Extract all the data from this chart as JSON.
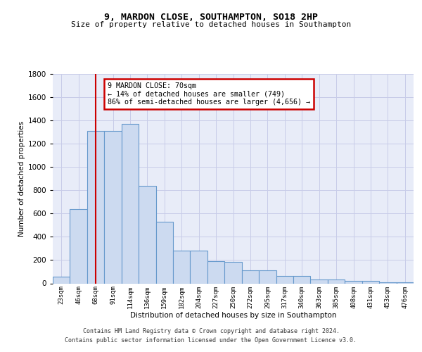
{
  "title1": "9, MARDON CLOSE, SOUTHAMPTON, SO18 2HP",
  "title2": "Size of property relative to detached houses in Southampton",
  "xlabel": "Distribution of detached houses by size in Southampton",
  "ylabel": "Number of detached properties",
  "categories": [
    "23sqm",
    "46sqm",
    "68sqm",
    "91sqm",
    "114sqm",
    "136sqm",
    "159sqm",
    "182sqm",
    "204sqm",
    "227sqm",
    "250sqm",
    "272sqm",
    "295sqm",
    "317sqm",
    "340sqm",
    "363sqm",
    "385sqm",
    "408sqm",
    "431sqm",
    "453sqm",
    "476sqm"
  ],
  "values": [
    55,
    640,
    1310,
    1310,
    1370,
    840,
    530,
    280,
    280,
    190,
    185,
    110,
    110,
    65,
    65,
    35,
    35,
    20,
    20,
    10,
    10
  ],
  "bar_color": "#ccdaf0",
  "bar_edge_color": "#6699cc",
  "grid_color": "#c8cce8",
  "bg_color": "#e8ecf8",
  "red_line_x": 2,
  "annotation_text": "9 MARDON CLOSE: 70sqm\n← 14% of detached houses are smaller (749)\n86% of semi-detached houses are larger (4,656) →",
  "annotation_box_color": "#ffffff",
  "annotation_box_edge": "#cc0000",
  "footer": "Contains HM Land Registry data © Crown copyright and database right 2024.\nContains public sector information licensed under the Open Government Licence v3.0.",
  "ylim": [
    0,
    1800
  ]
}
